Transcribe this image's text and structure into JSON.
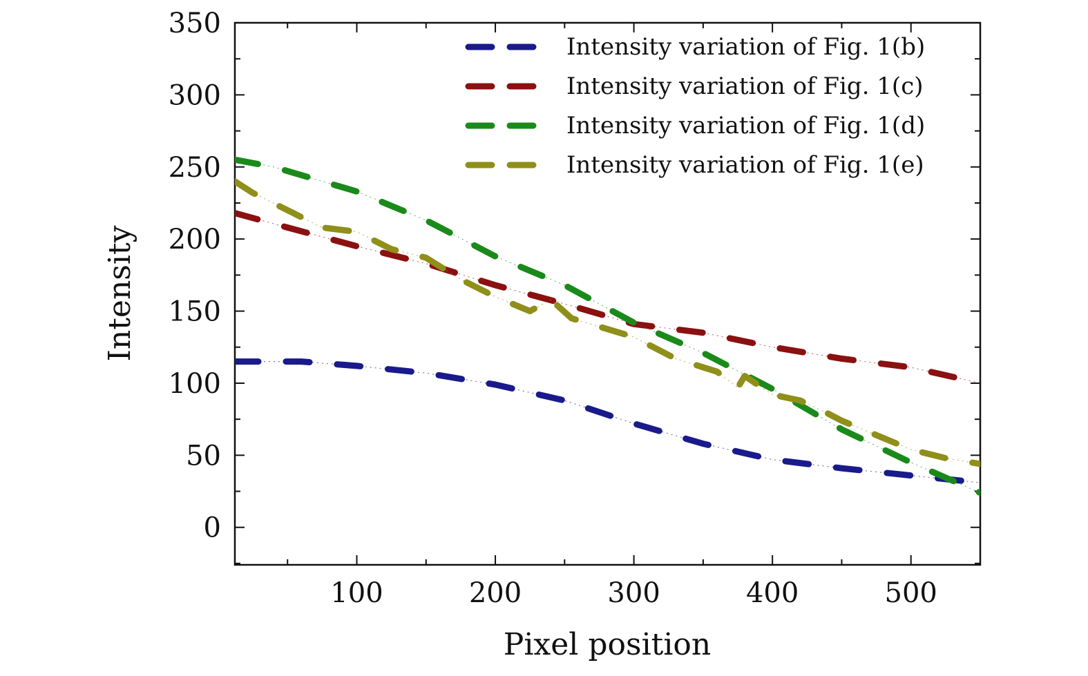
{
  "chart_data": {
    "type": "line",
    "title": "",
    "xlabel": "Pixel position",
    "ylabel": "Intensity",
    "xlim": [
      12,
      550
    ],
    "ylim": [
      -26,
      350
    ],
    "xticks": [
      100,
      200,
      300,
      400,
      500
    ],
    "xtick_labels": [
      "100",
      "200",
      "300",
      "400",
      "500"
    ],
    "yticks": [
      0,
      50,
      100,
      150,
      200,
      250,
      300,
      350
    ],
    "ytick_labels": [
      "0",
      "50",
      "100",
      "150",
      "200",
      "250",
      "300",
      "350"
    ],
    "grid": false,
    "legend_position": "top-right",
    "line_style": "dashed",
    "series": [
      {
        "name": "Intensity variation of Fig. 1(b)",
        "color": "#1a1a8c",
        "x": [
          12,
          60,
          100,
          150,
          200,
          250,
          300,
          350,
          400,
          450,
          500,
          550
        ],
        "y": [
          115,
          115,
          112,
          107,
          99,
          88,
          72,
          58,
          47,
          41,
          36,
          31
        ]
      },
      {
        "name": "Intensity variation of Fig. 1(c)",
        "color": "#8b1010",
        "x": [
          12,
          50,
          100,
          150,
          200,
          250,
          300,
          350,
          400,
          450,
          500,
          550
        ],
        "y": [
          218,
          208,
          195,
          183,
          168,
          155,
          141,
          135,
          125,
          117,
          111,
          100
        ]
      },
      {
        "name": "Intensity variation of Fig. 1(d)",
        "color": "#1a8a1a",
        "x": [
          12,
          40,
          100,
          150,
          200,
          250,
          300,
          350,
          400,
          450,
          500,
          550
        ],
        "y": [
          255,
          250,
          233,
          213,
          188,
          168,
          142,
          121,
          96,
          68,
          45,
          24
        ]
      },
      {
        "name": "Intensity variation of Fig. 1(e)",
        "color": "#8f8f1a",
        "x": [
          12,
          25,
          50,
          75,
          100,
          125,
          150,
          175,
          200,
          225,
          240,
          255,
          300,
          330,
          360,
          375,
          380,
          400,
          420,
          440,
          450,
          480,
          500,
          525,
          550
        ],
        "y": [
          240,
          232,
          220,
          208,
          205,
          193,
          187,
          172,
          160,
          150,
          158,
          145,
          132,
          117,
          108,
          97,
          105,
          92,
          88,
          79,
          74,
          62,
          54,
          48,
          44
        ]
      }
    ]
  }
}
